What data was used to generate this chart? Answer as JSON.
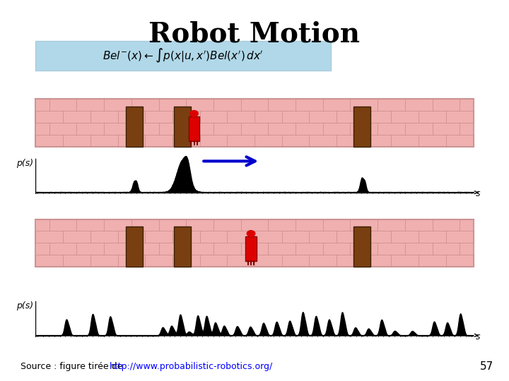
{
  "title": "Robot Motion",
  "title_fontsize": 28,
  "bg_color": "#ffffff",
  "formula_box_color": "#b0d8e8",
  "formula_text": "$Bel^{-}(x) \\leftarrow \\int p(x|u,x^{\\prime}) Bel(x^{\\prime})\\, dx^{\\prime}$",
  "brick_wall_color": "#f0b0b0",
  "brick_line_color": "#cc8888",
  "door_color": "#7a3f10",
  "robot_color": "#dd0000",
  "arrow_color": "#0000cc",
  "axis_label": "p(s)",
  "axis_xlabel": "s",
  "source_text": "Source : figure tirée de ",
  "source_link": "http://www.probabilistic-robotics.org/",
  "page_number": "57"
}
